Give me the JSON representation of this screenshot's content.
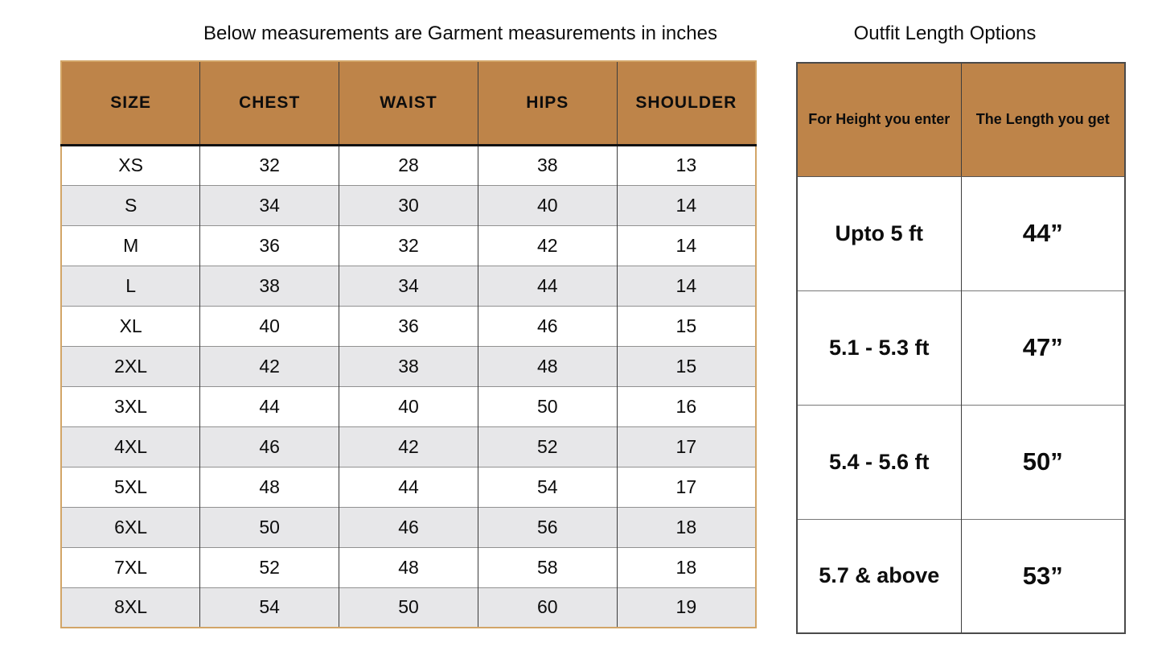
{
  "left_table": {
    "title": "Below measurements are Garment measurements in inches",
    "headers": [
      "SIZE",
      "CHEST",
      "WAIST",
      "HIPS",
      "SHOULDER"
    ],
    "rows": [
      [
        "XS",
        "32",
        "28",
        "38",
        "13"
      ],
      [
        "S",
        "34",
        "30",
        "40",
        "14"
      ],
      [
        "M",
        "36",
        "32",
        "42",
        "14"
      ],
      [
        "L",
        "38",
        "34",
        "44",
        "14"
      ],
      [
        "XL",
        "40",
        "36",
        "46",
        "15"
      ],
      [
        "2XL",
        "42",
        "38",
        "48",
        "15"
      ],
      [
        "3XL",
        "44",
        "40",
        "50",
        "16"
      ],
      [
        "4XL",
        "46",
        "42",
        "52",
        "17"
      ],
      [
        "5XL",
        "48",
        "44",
        "54",
        "17"
      ],
      [
        "6XL",
        "50",
        "46",
        "56",
        "18"
      ],
      [
        "7XL",
        "52",
        "48",
        "58",
        "18"
      ],
      [
        "8XL",
        "54",
        "50",
        "60",
        "19"
      ]
    ]
  },
  "right_table": {
    "title": "Outfit Length Options",
    "headers": [
      "For Height you enter",
      "The Length you get"
    ],
    "rows": [
      [
        "Upto 5 ft",
        "44”"
      ],
      [
        "5.1 - 5.3 ft",
        "47”"
      ],
      [
        "5.4 - 5.6 ft",
        "50”"
      ],
      [
        "5.7 & above",
        "53”"
      ]
    ]
  },
  "colors": {
    "header_brown": "#be8449",
    "row_alt_gray": "#e7e7e9",
    "outer_tan": "#d2a567",
    "dark_line": "#3d3d3d",
    "mid_line": "#919191"
  }
}
